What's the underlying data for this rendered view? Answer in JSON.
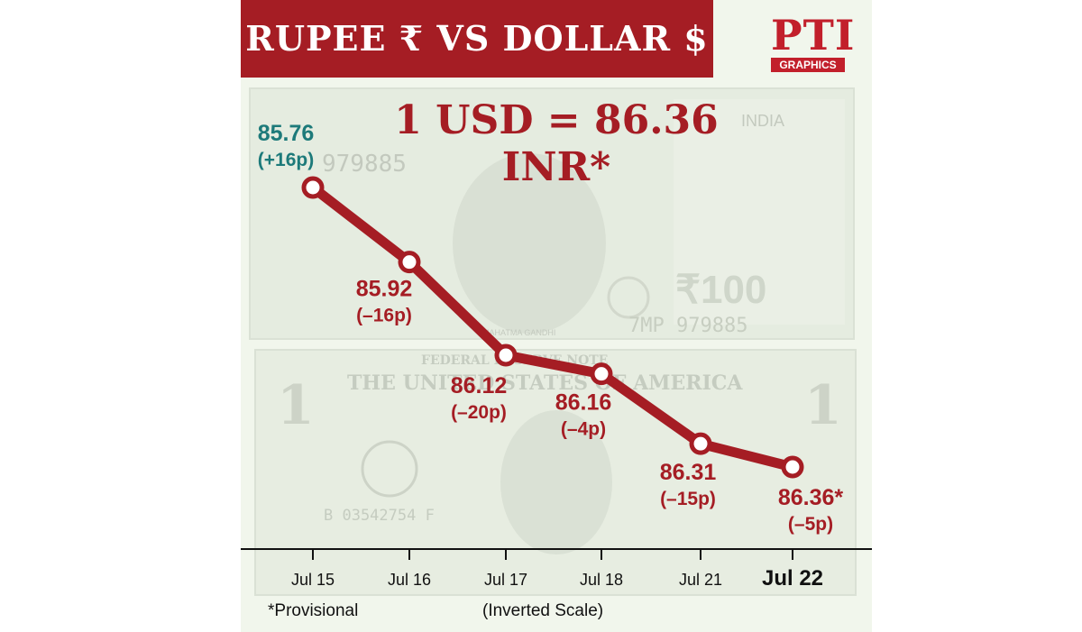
{
  "header": {
    "title": "RUPEE ₹   VS   DOLLAR $",
    "logo_mark": "PTI",
    "logo_sub": "GRAPHICS"
  },
  "headline": "1 USD = 86.36 INR*",
  "colors": {
    "brand_red": "#a51d24",
    "first_label": "#1d7a7a",
    "background": "#f1f6ec"
  },
  "background_art": {
    "note_100_serial": "979885",
    "note_100_serial_full": "7MP 979885",
    "note_100_value": "₹100",
    "note_100_country": "INDIA",
    "note_100_portrait_caption": "MAHATMA GANDHI",
    "dollar_title": "THE UNITED STATES OF AMERICA",
    "dollar_serial": "B 03542754 F",
    "dollar_banner": "FEDERAL RESERVE NOTE",
    "dollar_denomination": "1"
  },
  "chart_data": {
    "type": "line",
    "categories": [
      "Jul 15",
      "Jul 16",
      "Jul 17",
      "Jul 18",
      "Jul 21",
      "Jul 22"
    ],
    "series": [
      {
        "values": [
          85.76,
          85.92,
          86.12,
          86.16,
          86.31,
          86.36
        ]
      }
    ],
    "value_labels": [
      "85.76",
      "85.92",
      "86.12",
      "86.16",
      "86.31",
      "86.36*"
    ],
    "change_labels": [
      "(+16p)",
      "(–16p)",
      "(–20p)",
      "(–4p)",
      "(–15p)",
      "(–5p)"
    ],
    "y_scale": "inverted",
    "grid": false
  },
  "footer": {
    "footnote": "*Provisional",
    "scale_note": "(Inverted Scale)"
  }
}
